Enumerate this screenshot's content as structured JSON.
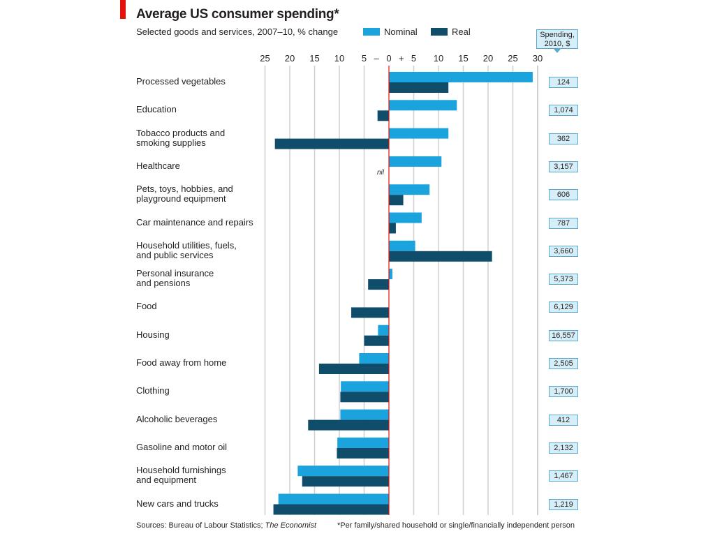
{
  "title": "Average US consumer spending*",
  "subtitle": "Selected goods and services, 2007–10, % change",
  "legend": {
    "nominal": "Nominal",
    "real": "Real"
  },
  "spending_header": {
    "line1": "Spending,",
    "line2": "2010, $"
  },
  "nil_label": "nil",
  "footer": {
    "source_prefix": "Sources: Bureau of Labour Statistics; ",
    "source_italic": "The Economist",
    "note": "*Per family/shared household or single/financially independent person"
  },
  "colors": {
    "nominal": "#1ba3dd",
    "real": "#0f4d6b",
    "zero_line": "#e3120b",
    "grid": "#d0d0d0",
    "accent_tab": "#e3120b"
  },
  "chart_data": {
    "type": "bar",
    "orientation": "horizontal",
    "title": "Average US consumer spending*",
    "subtitle": "Selected goods and services, 2007–10, % change",
    "xlim": [
      -25,
      30
    ],
    "x_ticks": [
      "25",
      "20",
      "15",
      "10",
      "5",
      "–",
      "0",
      "+",
      "5",
      "10",
      "15",
      "20",
      "25",
      "30"
    ],
    "x_tick_values": [
      -25,
      -20,
      -15,
      -10,
      -5,
      -2.5,
      0,
      2.5,
      5,
      10,
      15,
      20,
      25,
      30
    ],
    "grid": true,
    "legend_position": "top",
    "categories": [
      [
        "Processed vegetables"
      ],
      [
        "Education"
      ],
      [
        "Tobacco products and",
        "smoking supplies"
      ],
      [
        "Healthcare"
      ],
      [
        "Pets, toys, hobbies, and",
        "playground equipment"
      ],
      [
        "Car maintenance and repairs"
      ],
      [
        "Household utilities, fuels,",
        "and public services"
      ],
      [
        "Personal insurance",
        "and pensions"
      ],
      [
        "Food"
      ],
      [
        "Housing"
      ],
      [
        "Food away from home"
      ],
      [
        "Clothing"
      ],
      [
        "Alcoholic beverages"
      ],
      [
        "Gasoline and motor oil"
      ],
      [
        "Household furnishings",
        "and equipment"
      ],
      [
        "New cars and trucks"
      ]
    ],
    "series": [
      {
        "name": "Nominal",
        "values": [
          29,
          13.7,
          12,
          10.6,
          8.2,
          6.6,
          5.3,
          0.7,
          0,
          -2.2,
          -6,
          -9.7,
          -9.8,
          -10.4,
          -18.4,
          -22.3
        ]
      },
      {
        "name": "Real",
        "values": [
          12,
          -2.3,
          -23,
          0,
          2.9,
          1.4,
          20.8,
          -4.2,
          -7.6,
          -5,
          -14.1,
          -9.8,
          -16.3,
          -10.5,
          -17.5,
          -23.3
        ]
      }
    ],
    "spending_2010": [
      "124",
      "1,074",
      "362",
      "3,157",
      "606",
      "787",
      "3,660",
      "5,373",
      "6,129",
      "16,557",
      "2,505",
      "1,700",
      "412",
      "2,132",
      "1,467",
      "1,219"
    ]
  }
}
